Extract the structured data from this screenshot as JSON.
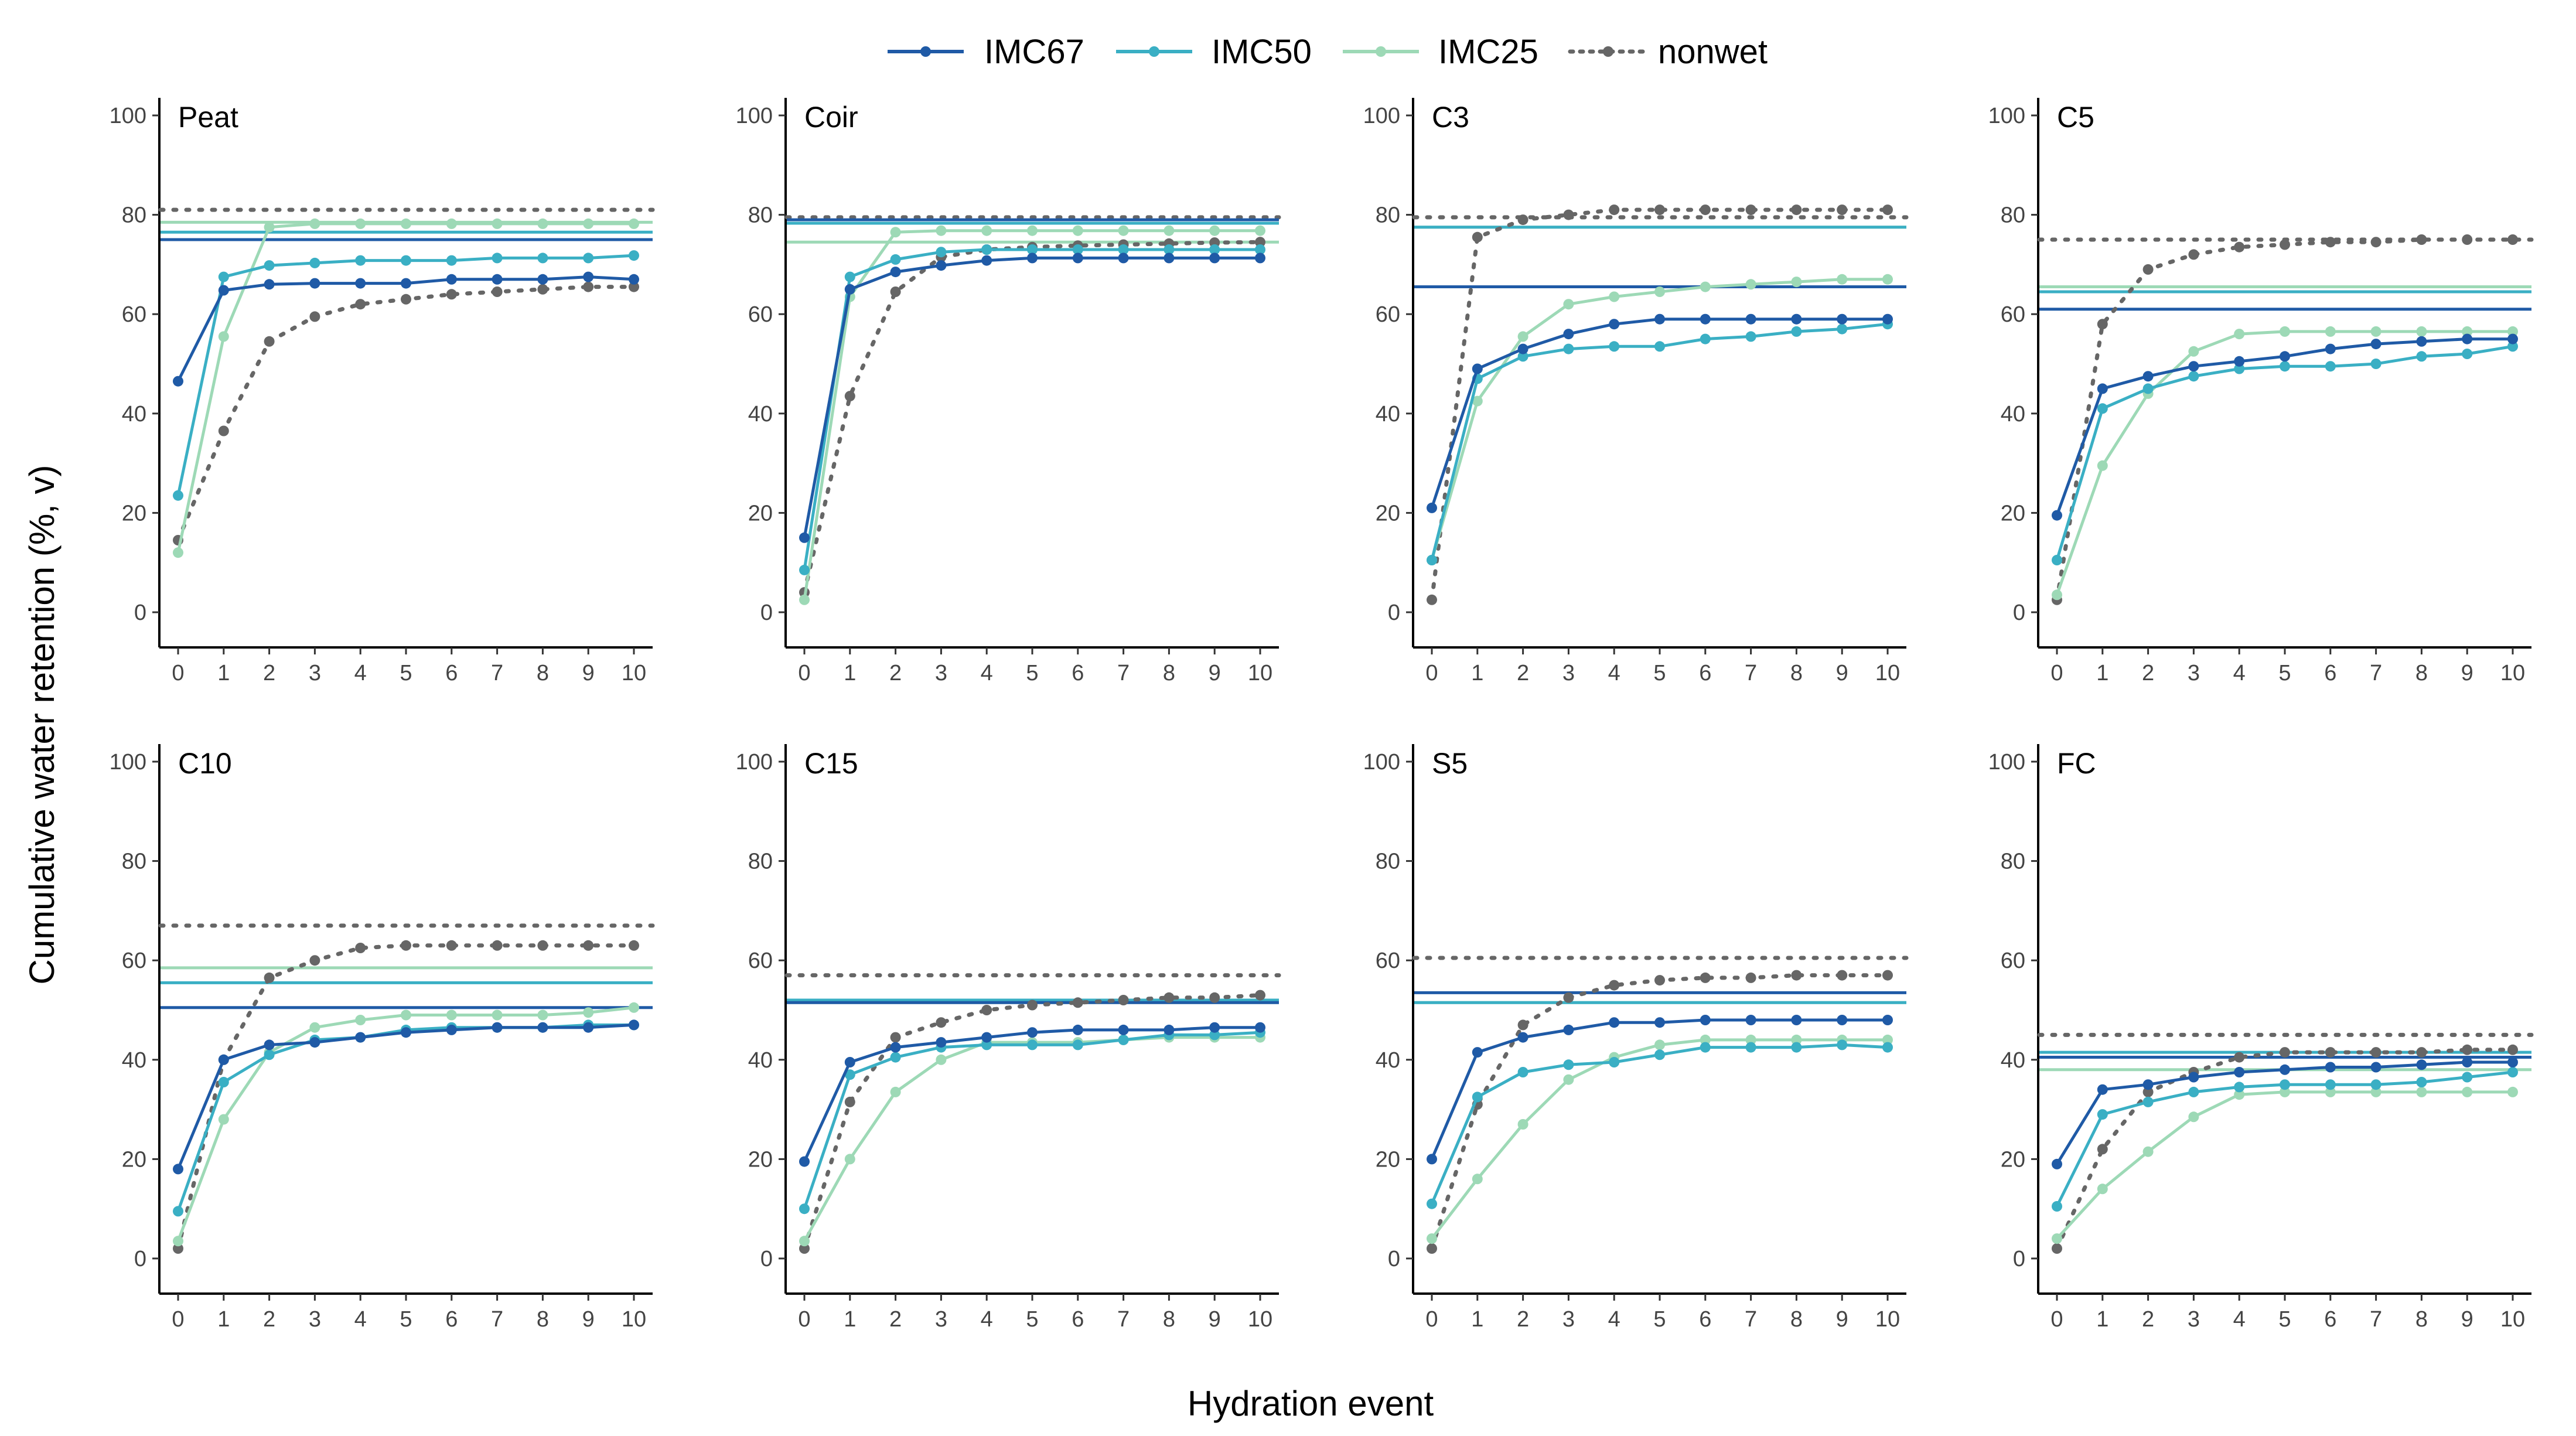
{
  "chart_data": {
    "type": "line",
    "ylabel": "Cumulative water retention (%, v)",
    "xlabel": "Hydration event",
    "x": [
      0,
      1,
      2,
      3,
      4,
      5,
      6,
      7,
      8,
      9,
      10
    ],
    "x_tick_labels": [
      "0",
      "1",
      "2",
      "3",
      "4",
      "5",
      "6",
      "7",
      "8",
      "9",
      "10"
    ],
    "ylim": [
      0,
      100
    ],
    "y_ticks": [
      0,
      20,
      40,
      60,
      80,
      100
    ],
    "y_tick_labels": [
      "0",
      "20",
      "40",
      "60",
      "80",
      "100"
    ],
    "legend_position": "top",
    "legend": [
      {
        "key": "IMC67",
        "label": "IMC67",
        "color": "#1f5aa6",
        "style": "solid"
      },
      {
        "key": "IMC50",
        "label": "IMC50",
        "color": "#3aafc4",
        "style": "solid"
      },
      {
        "key": "IMC25",
        "label": "IMC25",
        "color": "#9dd9b6",
        "style": "solid"
      },
      {
        "key": "nonwet",
        "label": "nonwet",
        "color": "#666666",
        "style": "dotted"
      }
    ],
    "panels": [
      {
        "title": "Peat",
        "series": [
          {
            "name": "IMC67",
            "values": [
              46.5,
              64.8,
              66,
              66.2,
              66.2,
              66.2,
              67,
              67,
              67,
              67.5,
              67
            ]
          },
          {
            "name": "IMC50",
            "values": [
              23.5,
              67.5,
              69.8,
              70.3,
              70.8,
              70.8,
              70.8,
              71.3,
              71.3,
              71.3,
              71.8
            ]
          },
          {
            "name": "IMC25",
            "values": [
              12,
              55.5,
              77.5,
              78.2,
              78.2,
              78.2,
              78.2,
              78.2,
              78.2,
              78.2,
              78.2
            ]
          },
          {
            "name": "nonwet",
            "values": [
              14.5,
              36.5,
              54.5,
              59.5,
              62,
              63,
              64,
              64.5,
              65,
              65.5,
              65.5
            ]
          }
        ],
        "reference_lines": [
          {
            "name": "IMC67",
            "value": 75
          },
          {
            "name": "IMC50",
            "value": 76.5
          },
          {
            "name": "IMC25",
            "value": 78.5
          },
          {
            "name": "nonwet",
            "value": 81
          }
        ]
      },
      {
        "title": "Coir",
        "series": [
          {
            "name": "IMC67",
            "values": [
              15,
              65,
              68.5,
              69.8,
              70.8,
              71.3,
              71.3,
              71.3,
              71.3,
              71.3,
              71.3
            ]
          },
          {
            "name": "IMC50",
            "values": [
              8.5,
              67.5,
              71,
              72.5,
              73,
              73,
              73,
              73,
              73,
              73,
              73
            ]
          },
          {
            "name": "IMC25",
            "values": [
              2.5,
              63.5,
              76.5,
              76.8,
              76.8,
              76.8,
              76.8,
              76.8,
              76.8,
              76.8,
              76.8
            ]
          },
          {
            "name": "nonwet",
            "values": [
              4,
              43.5,
              64.5,
              71.5,
              73,
              73.5,
              73.8,
              74,
              74.2,
              74.4,
              74.5
            ]
          }
        ],
        "reference_lines": [
          {
            "name": "IMC67",
            "value": 79
          },
          {
            "name": "IMC50",
            "value": 78.3
          },
          {
            "name": "IMC25",
            "value": 74.5
          },
          {
            "name": "nonwet",
            "value": 79.5
          }
        ]
      },
      {
        "title": "C3",
        "series": [
          {
            "name": "IMC67",
            "values": [
              21,
              49,
              53,
              56,
              58,
              59,
              59,
              59,
              59,
              59,
              59
            ]
          },
          {
            "name": "IMC50",
            "values": [
              10.5,
              47,
              51.5,
              53,
              53.5,
              53.5,
              55,
              55.5,
              56.5,
              57,
              58
            ]
          },
          {
            "name": "IMC25",
            "values": [
              10.5,
              42.5,
              55.5,
              62,
              63.5,
              64.5,
              65.5,
              66,
              66.5,
              67,
              67
            ]
          },
          {
            "name": "nonwet",
            "values": [
              2.5,
              75.5,
              79,
              80,
              81,
              81,
              81,
              81,
              81,
              81,
              81
            ]
          }
        ],
        "reference_lines": [
          {
            "name": "IMC67",
            "value": 65.5
          },
          {
            "name": "IMC50",
            "value": 77.5
          },
          {
            "name": "IMC25",
            "value": 77.5
          },
          {
            "name": "nonwet",
            "value": 79.5
          }
        ]
      },
      {
        "title": "C5",
        "series": [
          {
            "name": "IMC67",
            "values": [
              19.5,
              45,
              47.5,
              49.5,
              50.5,
              51.5,
              53,
              54,
              54.5,
              55,
              55
            ]
          },
          {
            "name": "IMC50",
            "values": [
              10.5,
              41,
              45,
              47.5,
              49,
              49.5,
              49.5,
              50,
              51.5,
              52,
              53.5
            ]
          },
          {
            "name": "IMC25",
            "values": [
              3.5,
              29.5,
              44,
              52.5,
              56,
              56.5,
              56.5,
              56.5,
              56.5,
              56.5,
              56.5
            ]
          },
          {
            "name": "nonwet",
            "values": [
              2.5,
              58,
              69,
              72,
              73.5,
              74,
              74.5,
              74.5,
              75,
              75,
              75
            ]
          }
        ],
        "reference_lines": [
          {
            "name": "IMC67",
            "value": 61
          },
          {
            "name": "IMC50",
            "value": 64.5
          },
          {
            "name": "IMC25",
            "value": 65.5
          },
          {
            "name": "nonwet",
            "value": 75
          }
        ]
      },
      {
        "title": "C10",
        "series": [
          {
            "name": "IMC67",
            "values": [
              18,
              40,
              43,
              43.5,
              44.5,
              45.5,
              46,
              46.5,
              46.5,
              46.5,
              47
            ]
          },
          {
            "name": "IMC50",
            "values": [
              9.5,
              35.5,
              41,
              44,
              44.5,
              46,
              46.5,
              46.5,
              46.5,
              47,
              47
            ]
          },
          {
            "name": "IMC25",
            "values": [
              3.5,
              28,
              41.5,
              46.5,
              48,
              49,
              49,
              49,
              49,
              49.5,
              50.5
            ]
          },
          {
            "name": "nonwet",
            "values": [
              2,
              40,
              56.5,
              60,
              62.5,
              63,
              63,
              63,
              63,
              63,
              63
            ]
          }
        ],
        "reference_lines": [
          {
            "name": "IMC67",
            "value": 50.5
          },
          {
            "name": "IMC50",
            "value": 55.5
          },
          {
            "name": "IMC25",
            "value": 58.5
          },
          {
            "name": "nonwet",
            "value": 67
          }
        ]
      },
      {
        "title": "C15",
        "series": [
          {
            "name": "IMC67",
            "values": [
              19.5,
              39.5,
              42.5,
              43.5,
              44.5,
              45.5,
              46,
              46,
              46,
              46.5,
              46.5
            ]
          },
          {
            "name": "IMC50",
            "values": [
              10,
              37,
              40.5,
              42.5,
              43,
              43,
              43,
              44,
              45,
              45,
              45.5
            ]
          },
          {
            "name": "IMC25",
            "values": [
              3.5,
              20,
              33.5,
              40,
              43.5,
              43.5,
              43.5,
              44,
              44.5,
              44.5,
              44.5
            ]
          },
          {
            "name": "nonwet",
            "values": [
              2,
              31.5,
              44.5,
              47.5,
              50,
              51,
              51.5,
              52,
              52.5,
              52.5,
              53
            ]
          }
        ],
        "reference_lines": [
          {
            "name": "IMC67",
            "value": 51.5
          },
          {
            "name": "IMC50",
            "value": 52
          },
          {
            "name": "IMC25",
            "value": 51.5
          },
          {
            "name": "nonwet",
            "value": 57
          }
        ]
      },
      {
        "title": "S5",
        "series": [
          {
            "name": "IMC67",
            "values": [
              20,
              41.5,
              44.5,
              46,
              47.5,
              47.5,
              48,
              48,
              48,
              48,
              48
            ]
          },
          {
            "name": "IMC50",
            "values": [
              11,
              32.5,
              37.5,
              39,
              39.5,
              41,
              42.5,
              42.5,
              42.5,
              43,
              42.5
            ]
          },
          {
            "name": "IMC25",
            "values": [
              4,
              16,
              27,
              36,
              40.5,
              43,
              44,
              44,
              44,
              44,
              44
            ]
          },
          {
            "name": "nonwet",
            "values": [
              2,
              31,
              47,
              52.5,
              55,
              56,
              56.5,
              56.5,
              57,
              57,
              57
            ]
          }
        ],
        "reference_lines": [
          {
            "name": "IMC67",
            "value": 53.5
          },
          {
            "name": "IMC50",
            "value": 51.5
          },
          {
            "name": "IMC25",
            "value": 51.5
          },
          {
            "name": "nonwet",
            "value": 60.5
          }
        ]
      },
      {
        "title": "FC",
        "series": [
          {
            "name": "IMC67",
            "values": [
              19,
              34,
              35,
              36.5,
              37.5,
              38,
              38.5,
              38.5,
              39,
              39.5,
              39.5
            ]
          },
          {
            "name": "IMC50",
            "values": [
              10.5,
              29,
              31.5,
              33.5,
              34.5,
              35,
              35,
              35,
              35.5,
              36.5,
              37.5
            ]
          },
          {
            "name": "IMC25",
            "values": [
              4,
              14,
              21.5,
              28.5,
              33,
              33.5,
              33.5,
              33.5,
              33.5,
              33.5,
              33.5
            ]
          },
          {
            "name": "nonwet",
            "values": [
              2,
              22,
              33.5,
              37.5,
              40.5,
              41.5,
              41.5,
              41.5,
              41.5,
              42,
              42
            ]
          }
        ],
        "reference_lines": [
          {
            "name": "IMC67",
            "value": 40.5
          },
          {
            "name": "IMC50",
            "value": 41.5
          },
          {
            "name": "IMC25",
            "value": 38
          },
          {
            "name": "nonwet",
            "value": 45
          }
        ]
      }
    ]
  }
}
